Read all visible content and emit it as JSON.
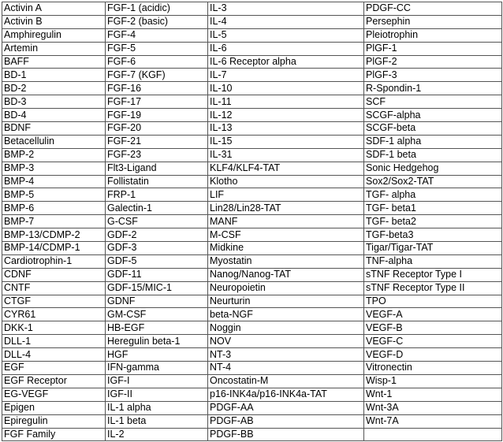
{
  "table": {
    "rows": [
      [
        "Activin A",
        "FGF-1 (acidic)",
        "IL-3",
        "PDGF-CC"
      ],
      [
        "Activin B",
        "FGF-2 (basic)",
        "IL-4",
        "Persephin"
      ],
      [
        "Amphiregulin",
        "FGF-4",
        "IL-5",
        "Pleiotrophin"
      ],
      [
        "Artemin",
        "FGF-5",
        "IL-6",
        "PlGF-1"
      ],
      [
        "BAFF",
        "FGF-6",
        "IL-6 Receptor alpha",
        "PlGF-2"
      ],
      [
        "BD-1",
        "FGF-7 (KGF)",
        "IL-7",
        "PlGF-3"
      ],
      [
        "BD-2",
        "FGF-16",
        "IL-10",
        "R-Spondin-1"
      ],
      [
        "BD-3",
        "FGF-17",
        "IL-11",
        "SCF"
      ],
      [
        "BD-4",
        "FGF-19",
        "IL-12",
        "SCGF-alpha"
      ],
      [
        "BDNF",
        "FGF-20",
        "IL-13",
        "SCGF-beta"
      ],
      [
        "Betacellulin",
        "FGF-21",
        "IL-15",
        "SDF-1 alpha"
      ],
      [
        "BMP-2",
        "FGF-23",
        "IL-31",
        "SDF-1 beta"
      ],
      [
        "BMP-3",
        "Flt3-Ligand",
        "KLF4/KLF4-TAT",
        "Sonic Hedgehog"
      ],
      [
        "BMP-4",
        "Follistatin",
        "Klotho",
        "Sox2/Sox2-TAT"
      ],
      [
        "BMP-5",
        "FRP-1",
        "LIF",
        "TGF- alpha"
      ],
      [
        "BMP-6",
        "Galectin-1",
        "Lin28/Lin28-TAT",
        "TGF- beta1"
      ],
      [
        "BMP-7",
        "G-CSF",
        "MANF",
        "TGF- beta2"
      ],
      [
        "BMP-13/CDMP-2",
        "GDF-2",
        "M-CSF",
        "TGF-beta3"
      ],
      [
        "BMP-14/CDMP-1",
        "GDF-3",
        "Midkine",
        "Tigar/Tigar-TAT"
      ],
      [
        "Cardiotrophin-1",
        "GDF-5",
        "Myostatin",
        "TNF-alpha"
      ],
      [
        "CDNF",
        "GDF-11",
        "Nanog/Nanog-TAT",
        "sTNF Receptor Type I"
      ],
      [
        "CNTF",
        "GDF-15/MIC-1",
        "Neuropoietin",
        "sTNF Receptor Type II"
      ],
      [
        "CTGF",
        "GDNF",
        "Neurturin",
        "TPO"
      ],
      [
        "CYR61",
        "GM-CSF",
        "beta-NGF",
        "VEGF-A"
      ],
      [
        "DKK-1",
        "HB-EGF",
        "Noggin",
        "VEGF-B"
      ],
      [
        "DLL-1",
        "Heregulin beta-1",
        "NOV",
        "VEGF-C"
      ],
      [
        "DLL-4",
        "HGF",
        "NT-3",
        "VEGF-D"
      ],
      [
        "EGF",
        "IFN-gamma",
        "NT-4",
        "Vitronectin"
      ],
      [
        "EGF Receptor",
        "IGF-I",
        "Oncostatin-M",
        "Wisp-1"
      ],
      [
        "EG-VEGF",
        "IGF-II",
        "p16-INK4a/p16-INK4a-TAT",
        "Wnt-1"
      ],
      [
        "Epigen",
        "IL-1 alpha",
        "PDGF-AA",
        "Wnt-3A"
      ],
      [
        "Epiregulin",
        "IL-1 beta",
        "PDGF-AB",
        "Wnt-7A"
      ],
      [
        "FGF Family",
        "IL-2",
        "PDGF-BB",
        ""
      ]
    ]
  }
}
